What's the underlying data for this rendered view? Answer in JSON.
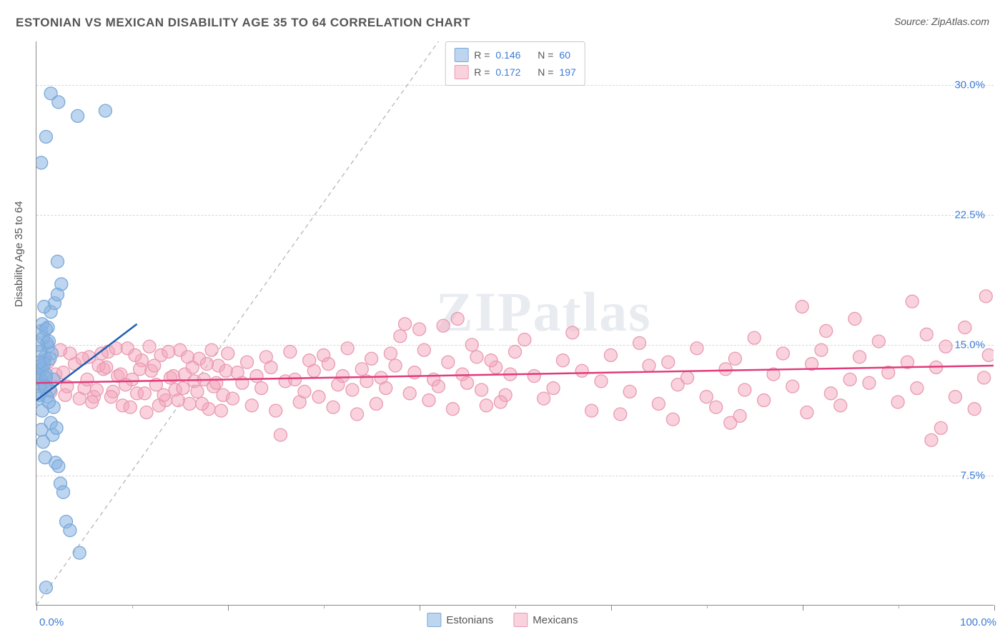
{
  "title": "ESTONIAN VS MEXICAN DISABILITY AGE 35 TO 64 CORRELATION CHART",
  "source": "Source: ZipAtlas.com",
  "ylabel": "Disability Age 35 to 64",
  "watermark": "ZIPatlas",
  "chart": {
    "type": "scatter",
    "xlim": [
      0,
      100
    ],
    "ylim": [
      0,
      32.5
    ],
    "y_ticks": [
      7.5,
      15.0,
      22.5,
      30.0
    ],
    "y_tick_labels": [
      "7.5%",
      "15.0%",
      "22.5%",
      "30.0%"
    ],
    "x_major_ticks": [
      0,
      20,
      40,
      60,
      80,
      100
    ],
    "x_minor_ticks": [
      10,
      30,
      50,
      70,
      90
    ],
    "x_min_label": "0.0%",
    "x_max_label": "100.0%",
    "background_color": "#ffffff",
    "grid_color": "#d8d8d8",
    "marker_radius": 9,
    "series": [
      {
        "name": "Estonians",
        "fill": "rgba(135,178,226,0.55)",
        "stroke": "#7aa9d8",
        "trend_color": "#1f5fb0",
        "trend": {
          "x1": 0,
          "y1": 11.8,
          "x2": 10.5,
          "y2": 16.2
        },
        "diag_dashed": {
          "x1": 0,
          "y1": 0,
          "x2": 42,
          "y2": 32.5
        },
        "R": "0.146",
        "N": "60",
        "points": [
          [
            0.2,
            13.5
          ],
          [
            0.3,
            13.2
          ],
          [
            0.5,
            13.0
          ],
          [
            0.4,
            13.8
          ],
          [
            0.7,
            12.8
          ],
          [
            0.8,
            14.1
          ],
          [
            1.0,
            13.3
          ],
          [
            1.2,
            14.9
          ],
          [
            1.4,
            12.4
          ],
          [
            0.6,
            11.2
          ],
          [
            1.5,
            10.5
          ],
          [
            1.7,
            9.8
          ],
          [
            2.0,
            8.2
          ],
          [
            2.3,
            8.0
          ],
          [
            2.5,
            7.0
          ],
          [
            2.8,
            6.5
          ],
          [
            3.1,
            4.8
          ],
          [
            3.5,
            4.3
          ],
          [
            4.5,
            3.0
          ],
          [
            1.0,
            1.0
          ],
          [
            0.9,
            14.3
          ],
          [
            1.1,
            15.1
          ],
          [
            1.8,
            13.0
          ],
          [
            0.4,
            12.7
          ],
          [
            0.5,
            15.8
          ],
          [
            0.6,
            16.2
          ],
          [
            0.7,
            15.4
          ],
          [
            1.2,
            16.0
          ],
          [
            1.5,
            16.9
          ],
          [
            1.9,
            17.4
          ],
          [
            2.2,
            17.9
          ],
          [
            2.6,
            18.5
          ],
          [
            2.2,
            19.8
          ],
          [
            0.8,
            17.2
          ],
          [
            1.0,
            15.9
          ],
          [
            1.3,
            15.2
          ],
          [
            1.6,
            14.5
          ],
          [
            0.5,
            10.1
          ],
          [
            0.7,
            9.4
          ],
          [
            0.9,
            8.5
          ],
          [
            0.2,
            11.9
          ],
          [
            0.3,
            12.1
          ],
          [
            0.4,
            14.6
          ],
          [
            0.6,
            13.6
          ],
          [
            1.1,
            12.0
          ],
          [
            1.8,
            11.4
          ],
          [
            2.1,
            10.2
          ],
          [
            0.5,
            25.5
          ],
          [
            1.0,
            27.0
          ],
          [
            1.5,
            29.5
          ],
          [
            2.3,
            29.0
          ],
          [
            4.3,
            28.2
          ],
          [
            7.2,
            28.5
          ],
          [
            0.8,
            13.9
          ],
          [
            1.4,
            14.2
          ],
          [
            0.2,
            15.0
          ],
          [
            0.3,
            14.0
          ],
          [
            1.0,
            13.1
          ],
          [
            0.9,
            12.6
          ],
          [
            1.3,
            11.7
          ]
        ]
      },
      {
        "name": "Mexicans",
        "fill": "rgba(244,166,188,0.50)",
        "stroke": "#e89ab1",
        "trend_color": "#e13a7a",
        "trend": {
          "x1": 0,
          "y1": 12.8,
          "x2": 100,
          "y2": 13.8
        },
        "R": "0.172",
        "N": "197",
        "points": [
          [
            2,
            13.3
          ],
          [
            3,
            12.1
          ],
          [
            4,
            13.9
          ],
          [
            5,
            12.5
          ],
          [
            5.5,
            14.3
          ],
          [
            6,
            12.0
          ],
          [
            7,
            13.6
          ],
          [
            7.5,
            14.6
          ],
          [
            8,
            12.3
          ],
          [
            8.5,
            13.2
          ],
          [
            9,
            11.5
          ],
          [
            9.5,
            14.8
          ],
          [
            10,
            13.0
          ],
          [
            10.5,
            12.2
          ],
          [
            11,
            14.1
          ],
          [
            11.5,
            11.1
          ],
          [
            12,
            13.5
          ],
          [
            12.5,
            12.7
          ],
          [
            13,
            14.4
          ],
          [
            13.5,
            11.8
          ],
          [
            14,
            13.1
          ],
          [
            14.5,
            12.4
          ],
          [
            15,
            14.7
          ],
          [
            15.5,
            13.3
          ],
          [
            16,
            11.6
          ],
          [
            16.5,
            12.9
          ],
          [
            17,
            14.2
          ],
          [
            17.5,
            13.0
          ],
          [
            18,
            11.3
          ],
          [
            18.5,
            12.6
          ],
          [
            19,
            13.8
          ],
          [
            19.5,
            12.1
          ],
          [
            20,
            14.5
          ],
          [
            20.5,
            11.9
          ],
          [
            21,
            13.4
          ],
          [
            21.5,
            12.8
          ],
          [
            22,
            14.0
          ],
          [
            22.5,
            11.5
          ],
          [
            23,
            13.2
          ],
          [
            23.5,
            12.5
          ],
          [
            24,
            14.3
          ],
          [
            24.5,
            13.7
          ],
          [
            25,
            11.2
          ],
          [
            25.5,
            9.8
          ],
          [
            26,
            12.9
          ],
          [
            26.5,
            14.6
          ],
          [
            27,
            13.0
          ],
          [
            27.5,
            11.7
          ],
          [
            28,
            12.3
          ],
          [
            28.5,
            14.1
          ],
          [
            29,
            13.5
          ],
          [
            29.5,
            12.0
          ],
          [
            30,
            14.4
          ],
          [
            30.5,
            13.9
          ],
          [
            31,
            11.4
          ],
          [
            31.5,
            12.7
          ],
          [
            32,
            13.2
          ],
          [
            32.5,
            14.8
          ],
          [
            33,
            12.4
          ],
          [
            33.5,
            11.0
          ],
          [
            34,
            13.6
          ],
          [
            34.5,
            12.9
          ],
          [
            35,
            14.2
          ],
          [
            35.5,
            11.6
          ],
          [
            36,
            13.1
          ],
          [
            36.5,
            12.5
          ],
          [
            37,
            14.5
          ],
          [
            37.5,
            13.8
          ],
          [
            38,
            15.5
          ],
          [
            38.5,
            16.2
          ],
          [
            39,
            12.2
          ],
          [
            39.5,
            13.4
          ],
          [
            40,
            15.9
          ],
          [
            40.5,
            14.7
          ],
          [
            41,
            11.8
          ],
          [
            41.5,
            13.0
          ],
          [
            42,
            12.6
          ],
          [
            42.5,
            16.1
          ],
          [
            43,
            14.0
          ],
          [
            43.5,
            11.3
          ],
          [
            44,
            16.5
          ],
          [
            44.5,
            13.3
          ],
          [
            45,
            12.8
          ],
          [
            45.5,
            15.0
          ],
          [
            46,
            14.3
          ],
          [
            47,
            11.5
          ],
          [
            48,
            13.7
          ],
          [
            49,
            12.1
          ],
          [
            50,
            14.6
          ],
          [
            51,
            15.3
          ],
          [
            52,
            13.2
          ],
          [
            53,
            11.9
          ],
          [
            54,
            12.5
          ],
          [
            55,
            14.1
          ],
          [
            56,
            15.7
          ],
          [
            57,
            13.5
          ],
          [
            58,
            11.2
          ],
          [
            59,
            12.9
          ],
          [
            60,
            14.4
          ],
          [
            61,
            11.0
          ],
          [
            62,
            12.3
          ],
          [
            63,
            15.1
          ],
          [
            64,
            13.8
          ],
          [
            65,
            11.6
          ],
          [
            66,
            14.0
          ],
          [
            66.5,
            10.7
          ],
          [
            67,
            12.7
          ],
          [
            68,
            13.1
          ],
          [
            69,
            14.8
          ],
          [
            70,
            12.0
          ],
          [
            71,
            11.4
          ],
          [
            72,
            13.6
          ],
          [
            72.5,
            10.5
          ],
          [
            73,
            14.2
          ],
          [
            73.5,
            10.9
          ],
          [
            74,
            12.4
          ],
          [
            75,
            15.4
          ],
          [
            76,
            11.8
          ],
          [
            77,
            13.3
          ],
          [
            78,
            14.5
          ],
          [
            79,
            12.6
          ],
          [
            80,
            17.2
          ],
          [
            80.5,
            11.1
          ],
          [
            81,
            13.9
          ],
          [
            82,
            14.7
          ],
          [
            82.5,
            15.8
          ],
          [
            83,
            12.2
          ],
          [
            84,
            11.5
          ],
          [
            85,
            13.0
          ],
          [
            85.5,
            16.5
          ],
          [
            86,
            14.3
          ],
          [
            87,
            12.8
          ],
          [
            88,
            15.2
          ],
          [
            89,
            13.4
          ],
          [
            90,
            11.7
          ],
          [
            91,
            14.0
          ],
          [
            91.5,
            17.5
          ],
          [
            92,
            12.5
          ],
          [
            93,
            15.6
          ],
          [
            93.5,
            9.5
          ],
          [
            94,
            13.7
          ],
          [
            94.5,
            10.2
          ],
          [
            95,
            14.9
          ],
          [
            96,
            12.0
          ],
          [
            97,
            16.0
          ],
          [
            98,
            11.3
          ],
          [
            99,
            13.1
          ],
          [
            99.2,
            17.8
          ],
          [
            99.5,
            14.4
          ],
          [
            3.5,
            14.5
          ],
          [
            4.5,
            11.9
          ],
          [
            6.5,
            13.8
          ],
          [
            1.5,
            12.3
          ],
          [
            2.5,
            14.7
          ],
          [
            1.0,
            13.1
          ],
          [
            0.8,
            12.5
          ],
          [
            1.2,
            14.0
          ],
          [
            2.8,
            13.4
          ],
          [
            3.2,
            12.6
          ],
          [
            4.8,
            14.2
          ],
          [
            5.3,
            13.0
          ],
          [
            5.8,
            11.7
          ],
          [
            6.3,
            12.4
          ],
          [
            6.8,
            14.5
          ],
          [
            7.3,
            13.7
          ],
          [
            7.8,
            12.0
          ],
          [
            8.3,
            14.8
          ],
          [
            8.8,
            13.3
          ],
          [
            9.3,
            12.7
          ],
          [
            9.8,
            11.4
          ],
          [
            10.3,
            14.4
          ],
          [
            10.8,
            13.6
          ],
          [
            11.3,
            12.2
          ],
          [
            11.8,
            14.9
          ],
          [
            12.3,
            13.8
          ],
          [
            12.8,
            11.5
          ],
          [
            13.3,
            12.1
          ],
          [
            13.8,
            14.6
          ],
          [
            14.3,
            13.2
          ],
          [
            14.8,
            11.8
          ],
          [
            15.3,
            12.5
          ],
          [
            15.8,
            14.3
          ],
          [
            16.3,
            13.7
          ],
          [
            16.8,
            12.3
          ],
          [
            17.3,
            11.6
          ],
          [
            17.8,
            13.9
          ],
          [
            18.3,
            14.7
          ],
          [
            18.8,
            12.8
          ],
          [
            19.3,
            11.2
          ],
          [
            19.8,
            13.5
          ],
          [
            46.5,
            12.4
          ],
          [
            47.5,
            14.1
          ],
          [
            48.5,
            11.7
          ],
          [
            49.5,
            13.3
          ]
        ]
      }
    ]
  },
  "legend_top_labels": {
    "R": "R =",
    "N": "N ="
  },
  "legend_bottom": [
    "Estonians",
    "Mexicans"
  ]
}
